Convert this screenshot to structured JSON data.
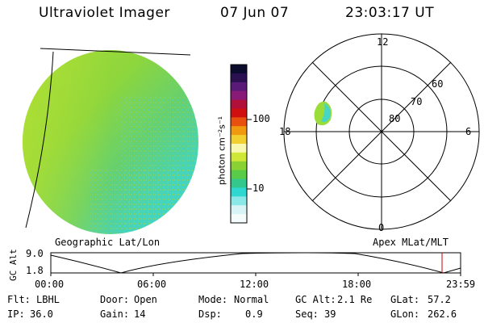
{
  "header": {
    "title": "Ultraviolet Imager",
    "date": "07 Jun 07",
    "time": "23:03:17 UT"
  },
  "colorbar": {
    "unit_label": "photon cm⁻²s⁻¹",
    "ticks": [
      {
        "value": 100,
        "label": "100"
      },
      {
        "value": 10,
        "label": "10"
      }
    ],
    "colors": [
      "#0b0b2e",
      "#2a1050",
      "#5a1a78",
      "#8a1a78",
      "#b0103a",
      "#d01010",
      "#e85010",
      "#f09a10",
      "#f2d030",
      "#f8f8b0",
      "#cfe838",
      "#8ad234",
      "#58cc48",
      "#34c88c",
      "#2ed8d0",
      "#8ae8e8",
      "#d8f4f6",
      "#f4fcfc"
    ]
  },
  "left_map": {
    "caption": "Geographic Lat/Lon"
  },
  "right_map": {
    "caption": "Apex MLat/MLT",
    "mlt_labels": {
      "top": "12",
      "left": "18",
      "right": "6",
      "bottom": "0"
    },
    "lat_labels": [
      "60",
      "70",
      "80"
    ]
  },
  "altitude_plot": {
    "label": "GC Alt",
    "y_ticks": [
      "9.0",
      "1.8"
    ],
    "x_ticks": [
      "00:00",
      "06:00",
      "12:00",
      "18:00",
      "23:59"
    ],
    "marker_color": "#cc0000"
  },
  "info": {
    "flt_label": "Flt:",
    "flt_value": "LBHL",
    "door_label": "Door:",
    "door_value": "Open",
    "mode_label": "Mode:",
    "mode_value": "Normal",
    "gcalt_label": "GC Alt:",
    "gcalt_value": "2.1 Re",
    "glat_label": "GLat:",
    "glat_value": "57.2",
    "ip_label": "IP:",
    "ip_value": "36.0",
    "gain_label": "Gain:",
    "gain_value": "14",
    "dsp_label": "Dsp:",
    "dsp_value": "0.9",
    "seq_label": "Seq:",
    "seq_value": "39",
    "glon_label": "GLon:",
    "glon_value": "262.6"
  }
}
